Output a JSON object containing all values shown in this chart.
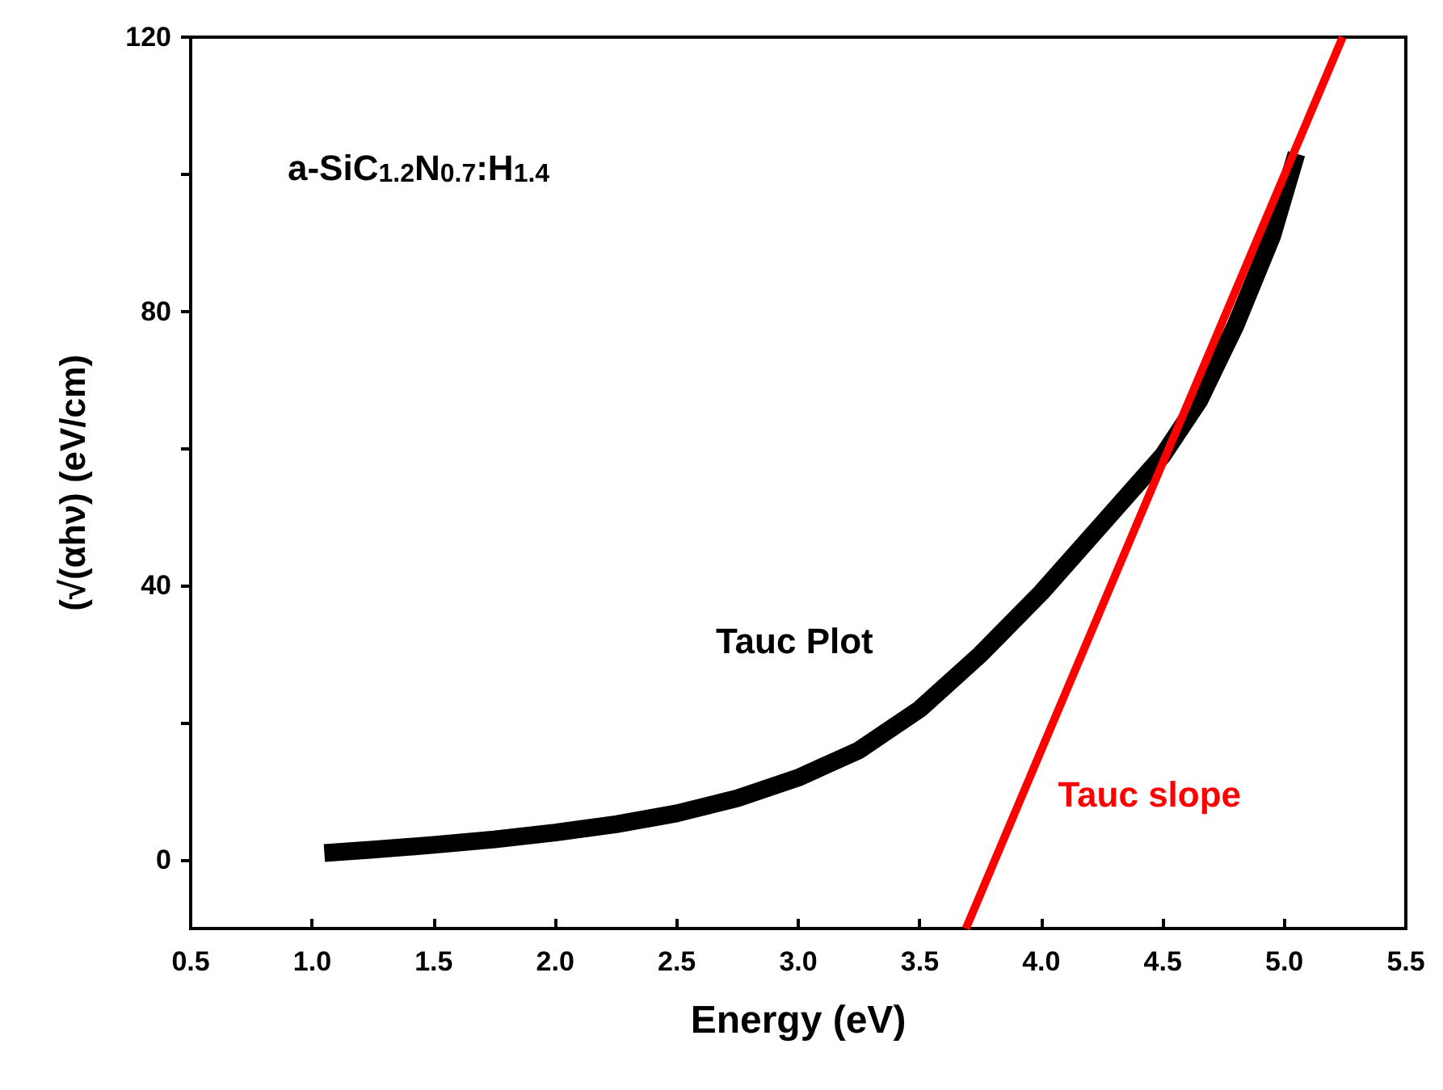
{
  "chart_data": {
    "type": "line",
    "xlabel": "Energy (eV)",
    "ylabel": "(√(αhν) (eV/cm)",
    "annotations": [
      "a-SiC$_{1.2}$N$_{0.7}$:H$_{1.4}$",
      "Tauc Plot"
    ],
    "series": [
      {
        "color": "#000000",
        "x": [
          1.05,
          1.25,
          1.5,
          1.75,
          2.0,
          2.25,
          2.5,
          2.75,
          3.0,
          3.25,
          3.5,
          3.75,
          4.0,
          4.25,
          4.5,
          4.65,
          4.8,
          4.95,
          5.05
        ],
        "values": [
          1,
          1.5,
          2.2,
          3,
          4,
          5.2,
          6.8,
          9,
          12,
          16,
          22,
          30,
          39,
          49,
          59,
          67,
          78,
          91,
          103
        ]
      },
      {
        "name": "Tauc slope",
        "color": "#ff0000",
        "x": [
          3.69,
          5.24
        ],
        "values": [
          -10,
          120
        ]
      }
    ],
    "xlim": [
      0.5,
      5.5
    ],
    "xticks": [
      0.5,
      {
        "value": 1,
        "label": "1.0"
      },
      1.5,
      {
        "value": 2,
        "label": "2.0"
      },
      2.5,
      {
        "value": 3,
        "label": "3.0"
      },
      3.5,
      {
        "value": 4,
        "label": "4.0"
      },
      4.5,
      {
        "value": 5,
        "label": "5.0"
      },
      5.5
    ],
    "ylim": [
      -10,
      120
    ],
    "yticks": [
      0,
      {
        "value": 20,
        "label": null
      },
      40,
      {
        "value": 60,
        "label": null
      },
      80,
      {
        "value": 100,
        "label": null
      },
      120
    ],
    "grid": false,
    "legend": false,
    "marker": "none",
    "line_style": "solid"
  }
}
